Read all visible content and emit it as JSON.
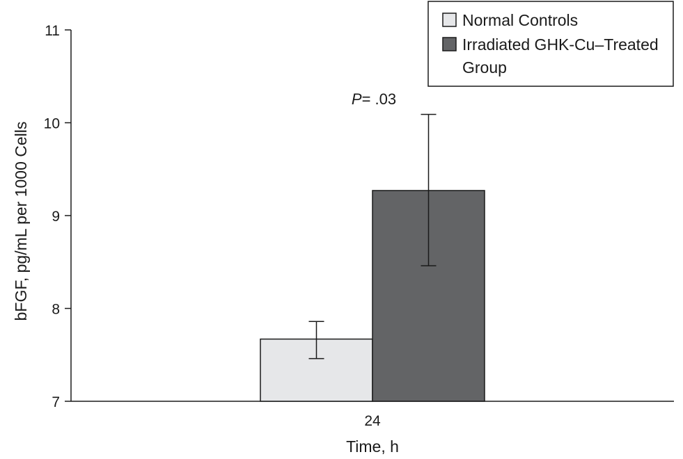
{
  "chart_data": {
    "type": "bar",
    "categories": [
      "24"
    ],
    "series": [
      {
        "name": "Normal Controls",
        "values": [
          7.67
        ],
        "error_low": [
          7.46
        ],
        "error_high": [
          7.86
        ],
        "color": "#e6e7e9"
      },
      {
        "name": "Irradiated GHK-Cu–Treated Group",
        "values": [
          9.27
        ],
        "error_low": [
          8.46
        ],
        "error_high": [
          10.09
        ],
        "color": "#636466"
      }
    ],
    "legend_lines": [
      [
        "Normal Controls"
      ],
      [
        "Irradiated GHK-Cu–Treated",
        "Group"
      ]
    ],
    "xlabel": "Time, h",
    "ylabel": "bFGF, pg/mL per 1000 Cells",
    "ylim": [
      7,
      11
    ],
    "yticks": [
      "7",
      "8",
      "9",
      "10",
      "11"
    ],
    "annotation": {
      "italic": "P",
      "text": "= .03"
    },
    "legend_position": "top-right",
    "grid": false
  }
}
